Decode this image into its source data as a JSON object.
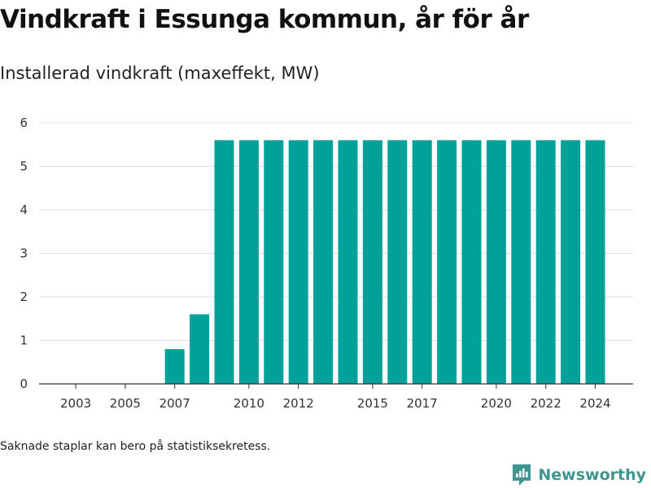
{
  "title": "Vindkraft i Essunga kommun, år för år",
  "subtitle": "Installerad vindkraft (maxeffekt, MW)",
  "footnote": "Saknade staplar kan bero på statistiksekretess.",
  "brand": {
    "name": "Newsworthy",
    "icon": "newsworthy-logo-icon",
    "color": "#3f9590"
  },
  "colors": {
    "bar": "#00a19a",
    "grid": "#dddddd",
    "axis": "#333333"
  },
  "chart_data": {
    "type": "bar",
    "title": "",
    "xlabel": "",
    "ylabel": "",
    "categories": [
      "2002",
      "2003",
      "2004",
      "2005",
      "2006",
      "2007",
      "2008",
      "2009",
      "2010",
      "2011",
      "2012",
      "2013",
      "2014",
      "2015",
      "2016",
      "2017",
      "2018",
      "2019",
      "2020",
      "2021",
      "2022",
      "2023",
      "2024"
    ],
    "values": [
      0,
      0,
      0,
      0,
      0,
      0.8,
      1.6,
      5.6,
      5.6,
      5.6,
      5.6,
      5.6,
      5.6,
      5.6,
      5.6,
      5.6,
      5.6,
      5.6,
      5.6,
      5.6,
      5.6,
      5.6,
      5.6
    ],
    "ylim": [
      0,
      6
    ],
    "yticks": [
      "0",
      "1",
      "2",
      "3",
      "4",
      "5",
      "6"
    ],
    "xtick_labels": [
      "2003",
      "2005",
      "2007",
      "2010",
      "2012",
      "2015",
      "2017",
      "2020",
      "2022",
      "2024"
    ],
    "grid": true,
    "legend": "none"
  }
}
